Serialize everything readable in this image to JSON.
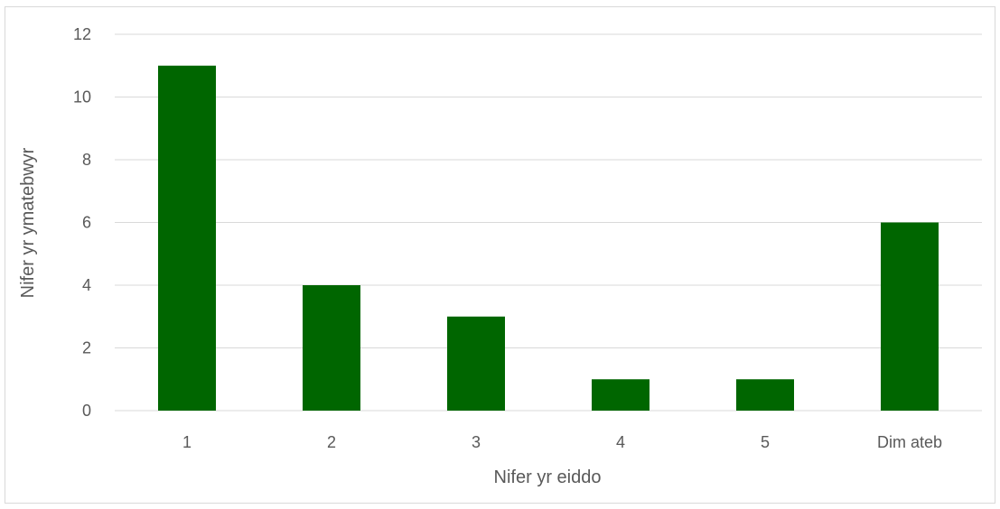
{
  "chart_data": {
    "type": "bar",
    "title": "",
    "xlabel": "Nifer yr eiddo",
    "ylabel": "Nifer yr ymatebwyr",
    "categories": [
      "1",
      "2",
      "3",
      "4",
      "5",
      "Dim ateb"
    ],
    "values": [
      11,
      4,
      3,
      1,
      1,
      6
    ],
    "ylim": [
      0,
      12
    ],
    "yticks": [
      0,
      2,
      4,
      6,
      8,
      10,
      12
    ],
    "grid": true,
    "legend": "none",
    "bar_color": "#006600",
    "grid_color": "#d9d9d9"
  }
}
